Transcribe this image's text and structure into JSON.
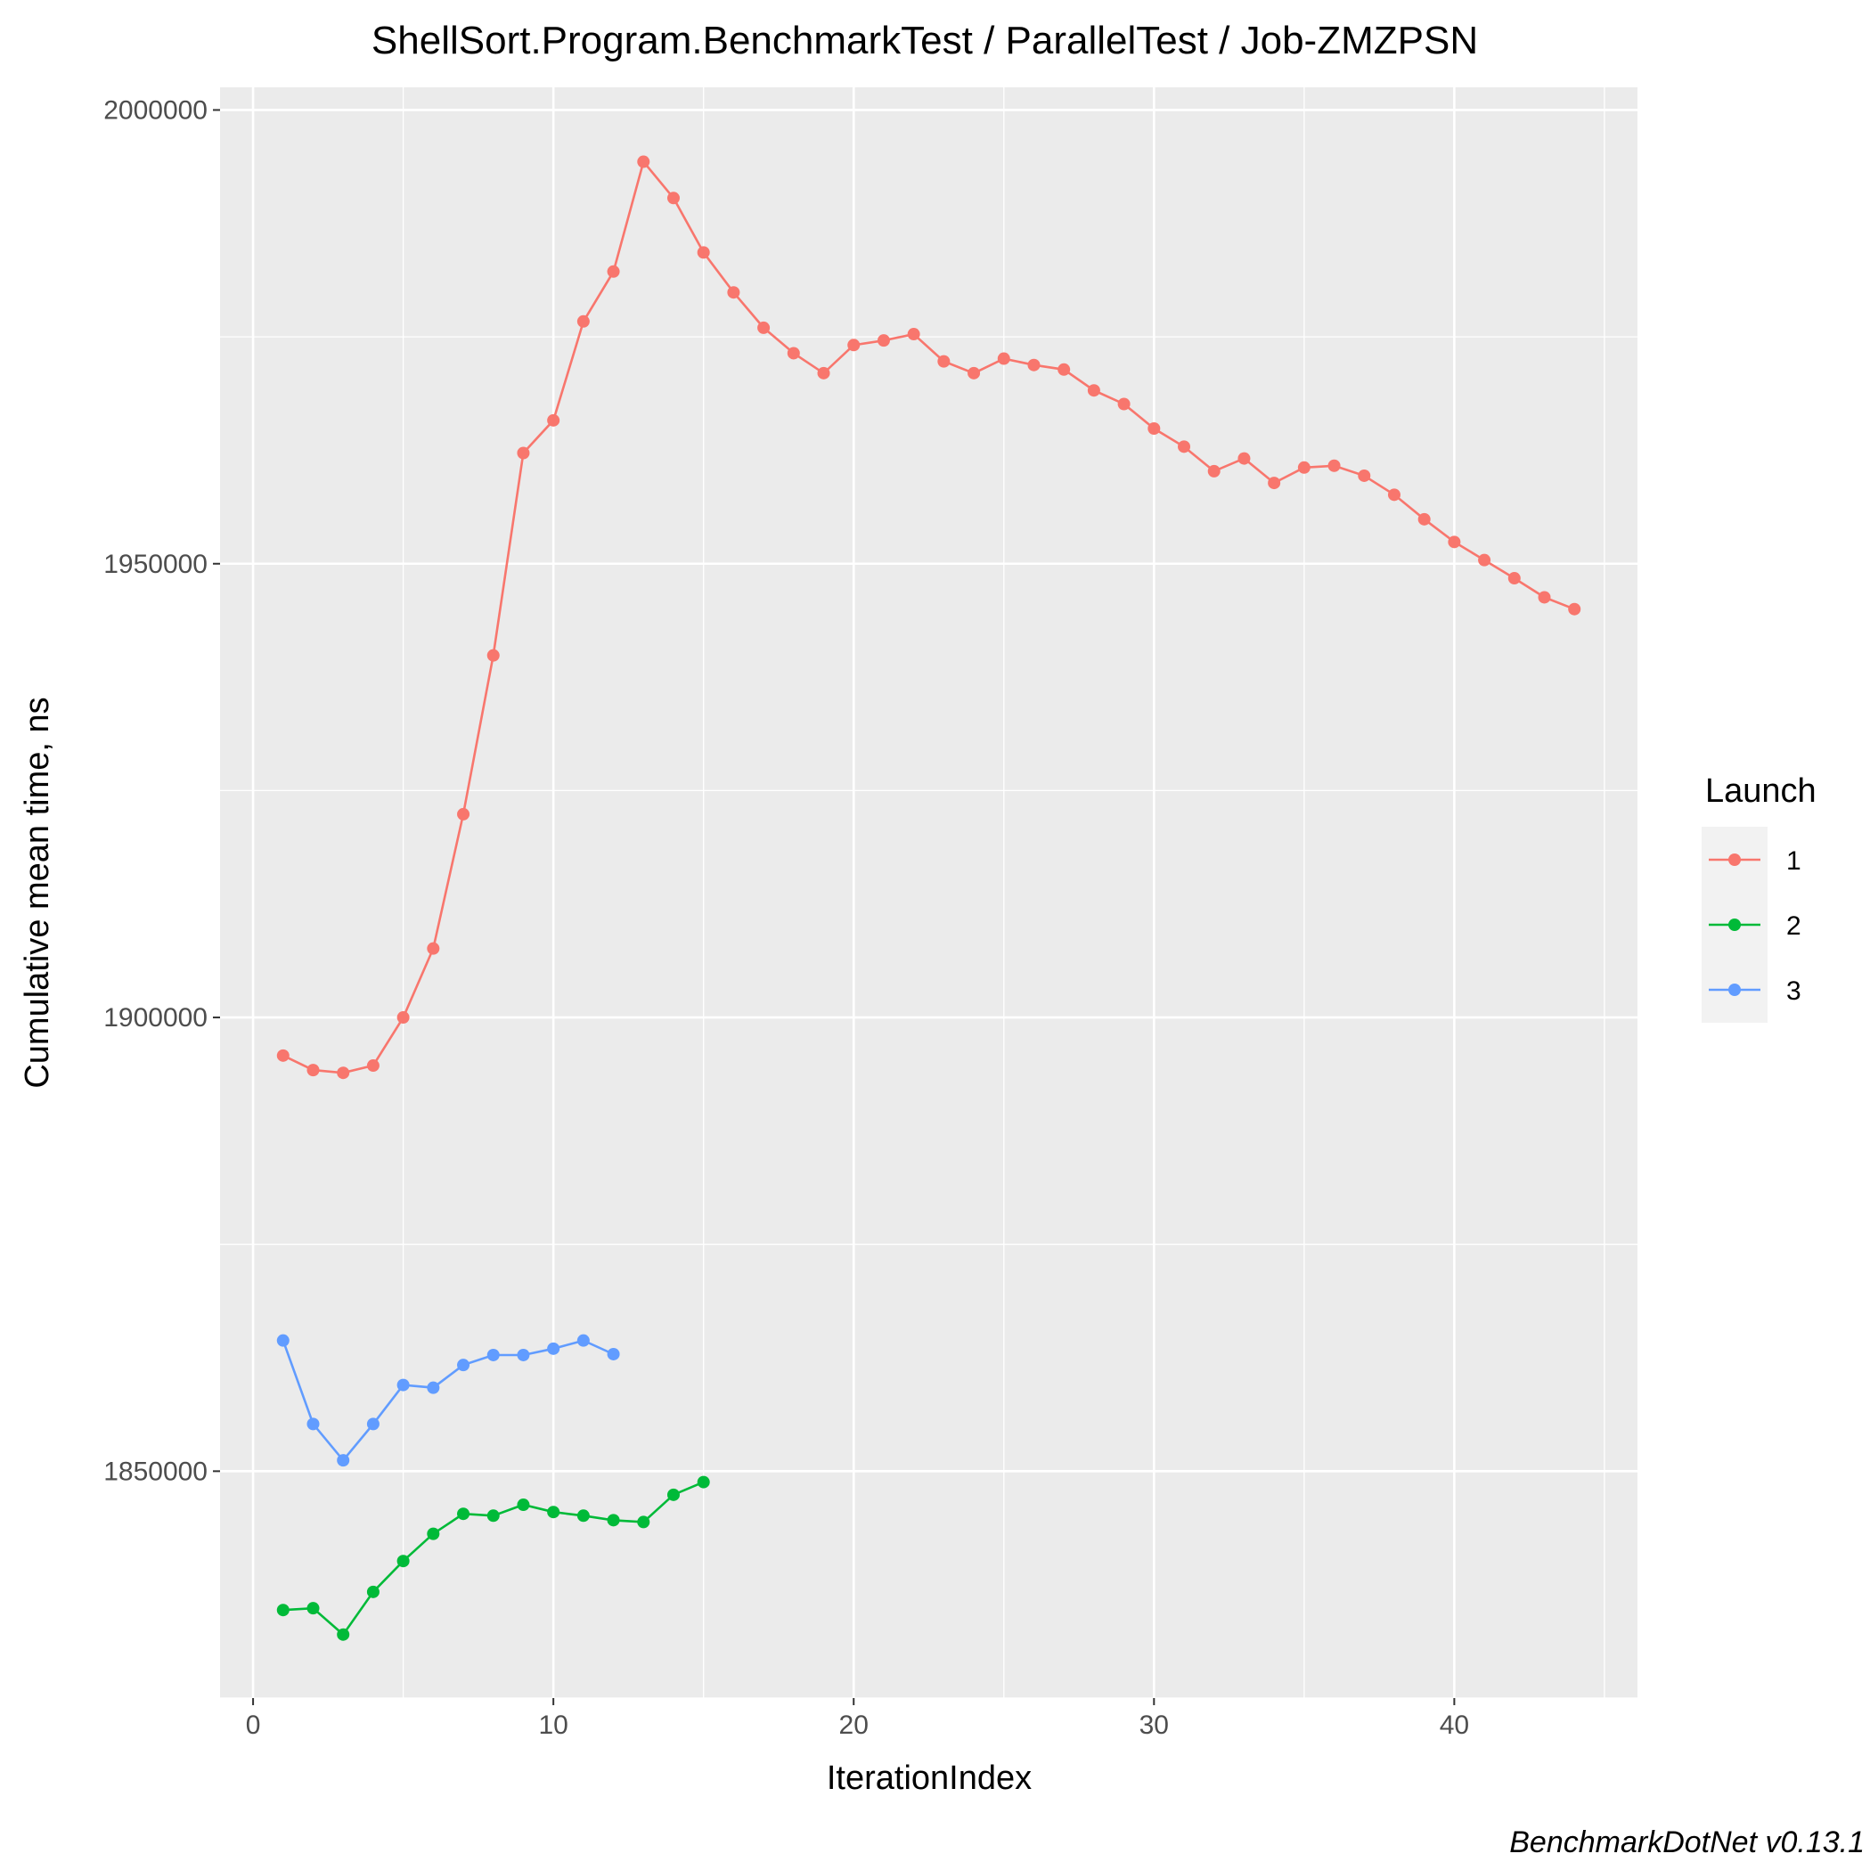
{
  "chart_data": {
    "type": "line",
    "title": "ShellSort.Program.BenchmarkTest / ParallelTest / Job-ZMZPSN",
    "xlabel": "IterationIndex",
    "ylabel": "Cumulative mean time, ns",
    "caption": "BenchmarkDotNet v0.13.1",
    "xlim": [
      -1.1,
      46.1
    ],
    "ylim": [
      1825000,
      2002500
    ],
    "x_ticks": [
      0,
      10,
      20,
      30,
      40
    ],
    "y_ticks": [
      1850000,
      1900000,
      1950000,
      2000000
    ],
    "x_tick_labels": [
      "0",
      "10",
      "20",
      "30",
      "40"
    ],
    "y_tick_labels": [
      "1850000",
      "1900000",
      "1950000",
      "2000000"
    ],
    "grid": true,
    "legend": {
      "title": "Launch",
      "placement": "right"
    },
    "series": [
      {
        "name": "1",
        "color": "#F8766D",
        "x": [
          1,
          2,
          3,
          4,
          5,
          6,
          7,
          8,
          9,
          10,
          11,
          12,
          13,
          14,
          15,
          16,
          17,
          18,
          19,
          20,
          21,
          22,
          23,
          24,
          25,
          26,
          27,
          28,
          29,
          30,
          31,
          32,
          33,
          34,
          35,
          36,
          37,
          38,
          39,
          40,
          41,
          42,
          43,
          44
        ],
        "values": [
          1895800,
          1894200,
          1893900,
          1894700,
          1900000,
          1907600,
          1922400,
          1939900,
          1962200,
          1965800,
          1976700,
          1982200,
          1994300,
          1990300,
          1984300,
          1979900,
          1976000,
          1973200,
          1971000,
          1974100,
          1974600,
          1975300,
          1972300,
          1971000,
          1972600,
          1971900,
          1971400,
          1969100,
          1967600,
          1964900,
          1962900,
          1960200,
          1961600,
          1958900,
          1960600,
          1960800,
          1959700,
          1957600,
          1954900,
          1952400,
          1950400,
          1948400,
          1946300,
          1945000
        ]
      },
      {
        "name": "2",
        "color": "#00BA38",
        "x": [
          1,
          2,
          3,
          4,
          5,
          6,
          7,
          8,
          9,
          10,
          11,
          12,
          13,
          14,
          15
        ],
        "values": [
          1834700,
          1834900,
          1832000,
          1836700,
          1840100,
          1843100,
          1845300,
          1845100,
          1846300,
          1845500,
          1845100,
          1844600,
          1844400,
          1847400,
          1848800
        ]
      },
      {
        "name": "3",
        "color": "#619CFF",
        "x": [
          1,
          2,
          3,
          4,
          5,
          6,
          7,
          8,
          9,
          10,
          11,
          12
        ],
        "values": [
          1864400,
          1855200,
          1851200,
          1855200,
          1859500,
          1859200,
          1861700,
          1862800,
          1862800,
          1863500,
          1864400,
          1862900
        ]
      }
    ]
  }
}
